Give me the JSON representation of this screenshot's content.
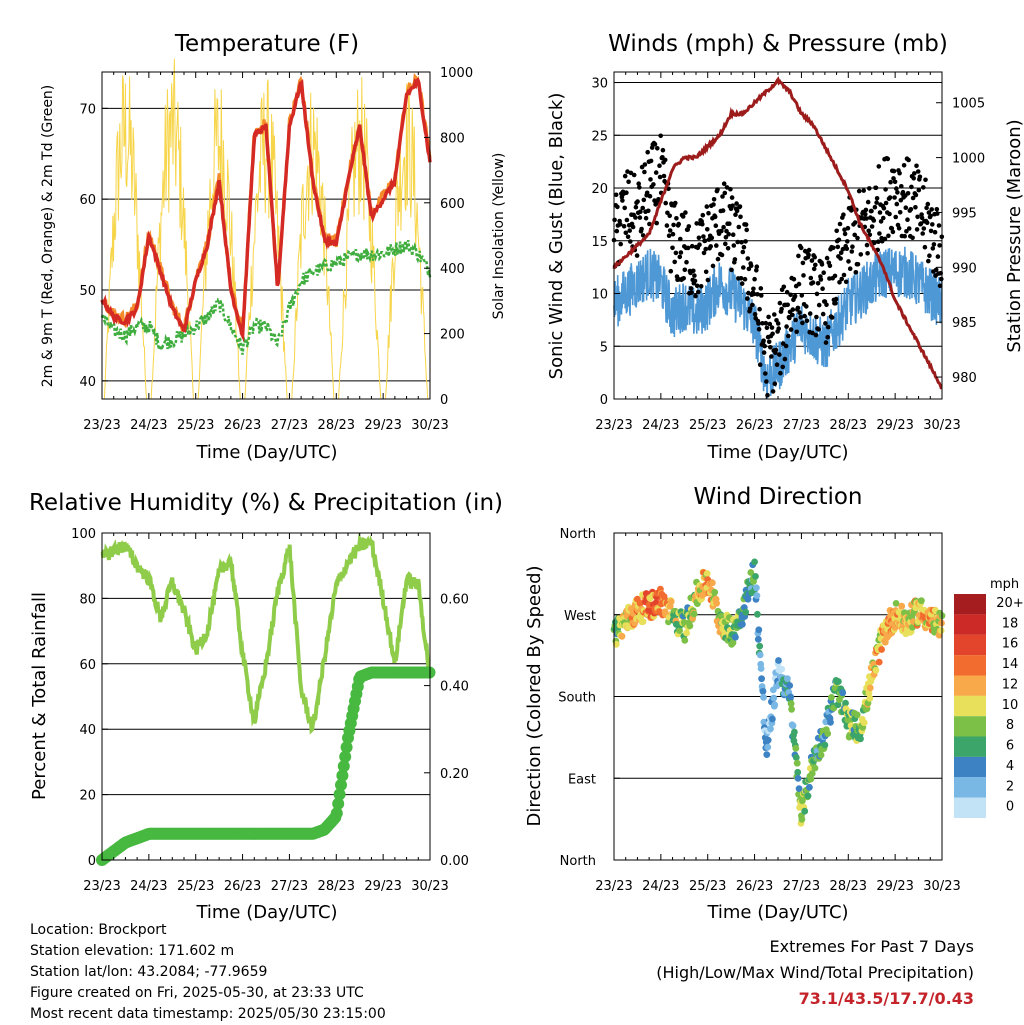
{
  "days": [
    "23/23",
    "24/23",
    "25/23",
    "26/23",
    "27/23",
    "28/23",
    "29/23",
    "30/23"
  ],
  "colors": {
    "temp_red": "#d42a23",
    "temp_orange": "#f58a2b",
    "dew_green": "#3fae3f",
    "solar_yellow": "#f7d54a",
    "wind_blue": "#4f98d6",
    "gust_black": "#000000",
    "pressure_maroon": "#9c1c1c",
    "rh_green": "#8fcc4a",
    "precip_green": "#47b840"
  },
  "speed_scale": {
    "unit": "mph",
    "labels": [
      "20+",
      "18",
      "16",
      "14",
      "12",
      "10",
      "8",
      "6",
      "4",
      "2",
      "0"
    ],
    "colors": [
      "#a51d1e",
      "#cc2a26",
      "#e3452c",
      "#f26b2f",
      "#f8a94a",
      "#e8e05a",
      "#7cc047",
      "#3ca56a",
      "#3d83c4",
      "#79b7e5",
      "#c2e2f6"
    ]
  },
  "info": {
    "location": "Location: Brockport",
    "elevation": "Station elevation: 171.602 m",
    "latlon": "Station lat/lon: 43.2084; -77.9659",
    "created": "Figure created on Fri, 2025-05-30, at 23:33 UTC",
    "recent": "Most recent data timestamp: 2025/05/30 23:15:00"
  },
  "extremes": {
    "heading": "Extremes For Past 7 Days",
    "sub": "(High/Low/Max Wind/Total Precipitation)",
    "values": "73.1/43.5/17.7/0.43"
  },
  "chart_data": [
    {
      "type": "line",
      "title": "Temperature (F)",
      "xlabel": "Time (Day/UTC)",
      "ylabel": "2m & 9m T (Red, Orange) & 2m Td (Green)",
      "y2label": "Solar Insolation (Yellow)",
      "ylim": [
        38,
        74
      ],
      "y2lim": [
        0,
        1000
      ],
      "yticks": [
        40,
        50,
        60,
        70
      ],
      "y2ticks": [
        0,
        200,
        400,
        600,
        800,
        1000
      ],
      "x": [
        0,
        0.25,
        0.5,
        0.75,
        1,
        1.25,
        1.5,
        1.75,
        2,
        2.25,
        2.5,
        2.75,
        3,
        3.25,
        3.5,
        3.75,
        4,
        4.25,
        4.5,
        4.75,
        5,
        5.25,
        5.5,
        5.75,
        6,
        6.25,
        6.5,
        6.75,
        7
      ],
      "series": [
        {
          "values": [
            49,
            47,
            46.5,
            48,
            56,
            52,
            48,
            45.5,
            51,
            55,
            62,
            50,
            45,
            67,
            68,
            50,
            68,
            73,
            62,
            55.5,
            55,
            62,
            68,
            58,
            60,
            62,
            71.5,
            73,
            64
          ]
        },
        {
          "values": [
            47,
            45.5,
            45,
            46,
            46,
            44,
            44.5,
            45,
            46,
            47,
            48.5,
            46,
            43.5,
            46,
            46,
            44,
            48,
            51,
            52,
            52.5,
            53,
            53.5,
            54,
            54,
            54,
            54.5,
            55,
            54,
            52
          ]
        },
        {
          "values": [
            0,
            0,
            1050,
            0,
            0,
            0,
            1060,
            0,
            0,
            0,
            1010,
            0,
            0,
            0,
            1000,
            0,
            0,
            0,
            990,
            0,
            0,
            0,
            1000,
            0,
            0,
            0,
            1010,
            0,
            0
          ]
        }
      ]
    },
    {
      "type": "scatter",
      "title": "Winds (mph) & Pressure (mb)",
      "xlabel": "Time (Day/UTC)",
      "ylabel": "Sonic Wind & Gust (Blue, Black)",
      "y2label": "Station Pressure (Maroon)",
      "ylim": [
        0,
        31
      ],
      "y2lim": [
        978,
        1007.8
      ],
      "yticks": [
        0,
        5,
        10,
        15,
        20,
        25,
        30
      ],
      "y2ticks": [
        980,
        985,
        990,
        995,
        1000,
        1005
      ],
      "x": [
        0,
        0.25,
        0.5,
        0.75,
        1,
        1.25,
        1.5,
        1.75,
        2,
        2.25,
        2.5,
        2.75,
        3,
        3.25,
        3.5,
        3.75,
        4,
        4.25,
        4.5,
        4.75,
        5,
        5.25,
        5.5,
        5.75,
        6,
        6.25,
        6.5,
        6.75,
        7
      ],
      "series": [
        {
          "values": [
            9,
            10,
            11,
            12,
            11,
            8,
            9,
            8,
            9,
            11,
            10,
            9,
            7,
            2,
            3,
            5,
            7,
            6,
            5,
            7,
            9,
            10,
            11,
            12,
            12,
            12,
            11,
            10,
            9
          ]
        },
        {
          "values": [
            15,
            18,
            17,
            20,
            21,
            15,
            14,
            13,
            15,
            17,
            16,
            14,
            10,
            4,
            5,
            9,
            11,
            10,
            9,
            12,
            15,
            16,
            17,
            19,
            20,
            19,
            18,
            16,
            14
          ]
        },
        {
          "values": [
            990,
            991,
            992,
            993,
            996,
            999,
            1000,
            1000,
            1001,
            1002,
            1004,
            1004,
            1005,
            1006,
            1007,
            1006,
            1004,
            1003,
            1001,
            999,
            997,
            994,
            992,
            990,
            987,
            985,
            983,
            981,
            979
          ]
        }
      ]
    },
    {
      "type": "line",
      "title": "Relative Humidity (%) & Precipitation (in)",
      "xlabel": "Time (Day/UTC)",
      "ylabel": "Percent & Total Rainfall",
      "ylim": [
        0,
        100
      ],
      "y2lim": [
        0,
        0.75
      ],
      "yticks": [
        0,
        20,
        40,
        60,
        80,
        100
      ],
      "y2ticks": [
        "0.00",
        "0.20",
        "0.40",
        "0.60"
      ],
      "x": [
        0,
        0.25,
        0.5,
        0.75,
        1,
        1.25,
        1.5,
        1.75,
        2,
        2.25,
        2.5,
        2.75,
        3,
        3.25,
        3.5,
        3.75,
        4,
        4.25,
        4.5,
        4.75,
        5,
        5.25,
        5.5,
        5.75,
        6,
        6.25,
        6.5,
        6.75,
        7
      ],
      "series": [
        {
          "values": [
            92,
            95,
            96,
            90,
            86,
            74,
            85,
            76,
            64,
            70,
            88,
            92,
            63,
            42,
            60,
            82,
            96,
            52,
            40,
            62,
            84,
            91,
            96,
            97,
            80,
            60,
            86,
            84,
            56
          ]
        },
        {
          "values": [
            0,
            0.02,
            0.04,
            0.05,
            0.06,
            0.06,
            0.06,
            0.06,
            0.06,
            0.06,
            0.06,
            0.06,
            0.06,
            0.06,
            0.06,
            0.06,
            0.06,
            0.06,
            0.06,
            0.07,
            0.1,
            0.28,
            0.42,
            0.43,
            0.43,
            0.43,
            0.43,
            0.43,
            0.43
          ]
        }
      ]
    },
    {
      "type": "scatter",
      "title": "Wind Direction",
      "xlabel": "Time (Day/UTC)",
      "ylabel": "Direction (Colored By Speed)",
      "yticks": [
        "North",
        "East",
        "South",
        "West",
        "North"
      ],
      "ylim": [
        0,
        360
      ],
      "x": [
        0,
        0.25,
        0.5,
        0.75,
        1,
        1.25,
        1.5,
        1.75,
        2,
        2.25,
        2.5,
        2.75,
        3,
        3.25,
        3.5,
        3.75,
        4,
        4.25,
        4.5,
        4.75,
        5,
        5.25,
        5.5,
        5.75,
        6,
        6.25,
        6.5,
        6.75,
        7
      ],
      "series": [
        {
          "values": [
            250,
            262,
            275,
            280,
            285,
            270,
            255,
            290,
            310,
            265,
            250,
            275,
            320,
            120,
            210,
            180,
            50,
            110,
            140,
            190,
            150,
            145,
            200,
            250,
            270,
            260,
            275,
            265,
            255
          ]
        },
        {
          "values": [
            6,
            11,
            12,
            13,
            14,
            9,
            7,
            10,
            12,
            9,
            8,
            6,
            5,
            3,
            2,
            5,
            8,
            6,
            5,
            7,
            8,
            7,
            10,
            12,
            12,
            10,
            11,
            12,
            10
          ]
        }
      ]
    }
  ]
}
